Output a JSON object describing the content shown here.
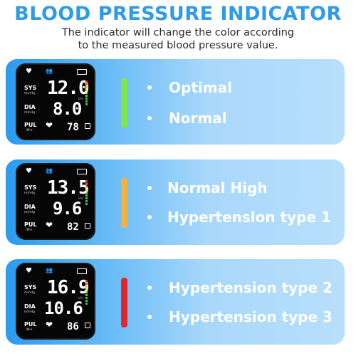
{
  "header": {
    "title": "BLOOD PRESSURE INDICATOR",
    "subtitle_line1": "The indicator will change the color according",
    "subtitle_line2": "to the measured blood pressure value."
  },
  "cards": [
    {
      "sys": "12.0",
      "dia": "8.0",
      "pul": "78",
      "bar_color": "#7ee84a",
      "items": [
        "Optimal",
        "Normal"
      ]
    },
    {
      "sys": "13.5",
      "dia": "9.6",
      "pul": "82",
      "bar_color": "#f5b13c",
      "items": [
        "Normal High",
        "Hypertenslon type 1"
      ]
    },
    {
      "sys": "16.9",
      "dia": "10.6",
      "pul": "86",
      "bar_color": "#e3262b",
      "items": [
        "Hypertension type 2",
        "Hypertension type 3"
      ]
    }
  ],
  "display_labels": {
    "sys": "SYS",
    "dia": "DIA",
    "pul": "PUL",
    "dia_unit": "mmHg",
    "sys_unit": "mmHg",
    "pul_unit": "/Min",
    "kpa": "kPa"
  },
  "icons": [
    "heart-icon",
    "users-icon",
    "battery-icon",
    "heartbeat-icon",
    "memory-icon"
  ]
}
